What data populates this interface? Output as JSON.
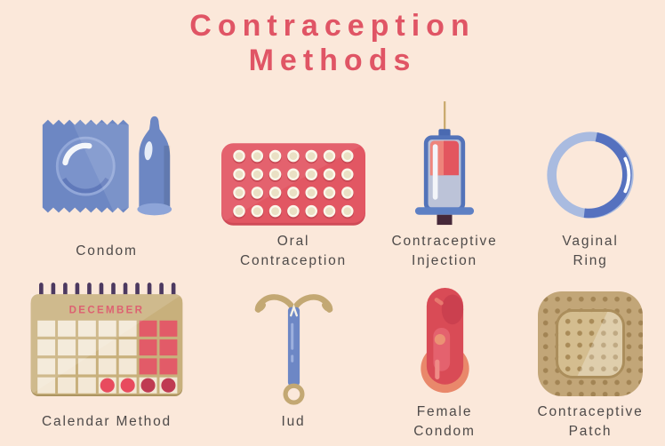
{
  "title": "Contraception\nMethods",
  "palette": {
    "background": "#fbe8da",
    "title_red": "#e05565",
    "label_gray": "#4e4a49",
    "blue": "#6d87c3",
    "light_blue": "#a9bbe0",
    "pack_red": "#e25763",
    "dark_red": "#bf3a52",
    "calendar_tan": "#c8b07c",
    "patch_tan": "#c2a678",
    "salmon": "#e9886b",
    "pill_cream": "#f4ead9",
    "peg_purple": "#4c3960"
  },
  "methods": [
    {
      "id": "condom",
      "icon": "condom-icon",
      "label": "Condom"
    },
    {
      "id": "oral-contraception",
      "icon": "pill-pack-icon",
      "label": "Oral\nContraception"
    },
    {
      "id": "contraceptive-injection",
      "icon": "syringe-icon",
      "label": "Contraceptive\nInjection"
    },
    {
      "id": "vaginal-ring",
      "icon": "ring-icon",
      "label": "Vaginal\nRing"
    },
    {
      "id": "calendar-method",
      "icon": "calendar-icon",
      "label": "Calendar Method"
    },
    {
      "id": "iud",
      "icon": "iud-icon",
      "label": "Iud"
    },
    {
      "id": "female-condom",
      "icon": "female-condom-icon",
      "label": "Female\nCondom"
    },
    {
      "id": "contraceptive-patch",
      "icon": "patch-icon",
      "label": "Contraceptive\nPatch"
    }
  ],
  "calendar": {
    "month": "DECEMBER"
  }
}
